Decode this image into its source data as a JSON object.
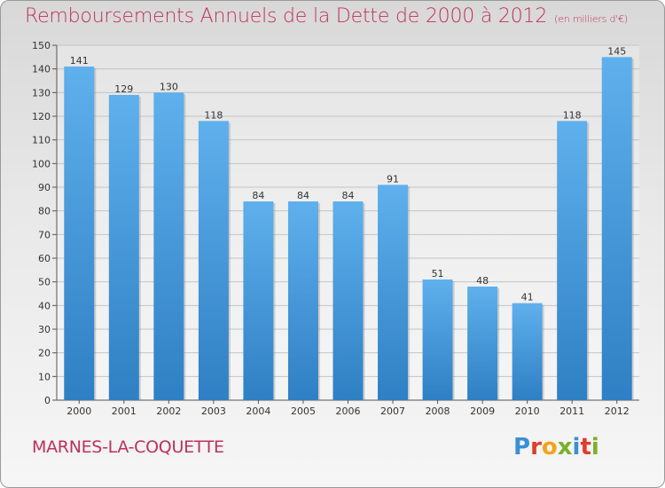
{
  "chart_data": {
    "type": "bar",
    "title": "Remboursements Annuels de la Dette de 2000 à 2012",
    "subtitle": "(en milliers d'€)",
    "categories": [
      "2000",
      "2001",
      "2002",
      "2003",
      "2004",
      "2005",
      "2006",
      "2007",
      "2008",
      "2009",
      "2010",
      "2011",
      "2012"
    ],
    "values": [
      141,
      129,
      130,
      118,
      84,
      84,
      84,
      91,
      51,
      48,
      41,
      118,
      145
    ],
    "ylim": [
      0,
      150
    ],
    "ytick_step": 10,
    "xlabel": "",
    "ylabel": "",
    "grid": true
  },
  "footer": {
    "city": "MARNES-LA-COQUETTE",
    "brand": "Proxiti"
  },
  "colors": {
    "bar_light": "#5fb0ec",
    "bar_dark": "#2f7fc4",
    "title": "#c0305a"
  }
}
